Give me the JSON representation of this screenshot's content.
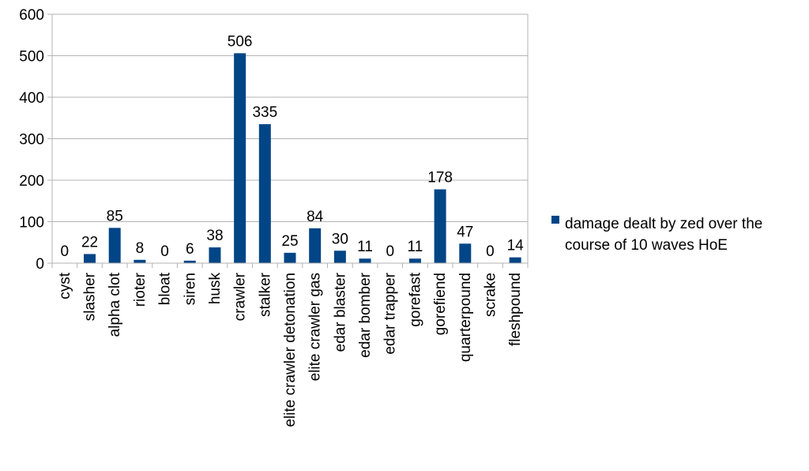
{
  "chart_data": {
    "type": "bar",
    "categories": [
      "cyst",
      "slasher",
      "alpha clot",
      "rioter",
      "bloat",
      "siren",
      "husk",
      "crawler",
      "stalker",
      "elite crawler detonation",
      "elite crawler gas",
      "edar blaster",
      "edar bomber",
      "edar trapper",
      "gorefast",
      "gorefiend",
      "quarterpound",
      "scrake",
      "fleshpound"
    ],
    "series": [
      {
        "name": "damage dealt by zed over the course of 10 waves HoE",
        "values": [
          0,
          22,
          85,
          8,
          0,
          6,
          38,
          506,
          335,
          25,
          84,
          30,
          11,
          0,
          11,
          178,
          47,
          0,
          14
        ],
        "color": "#004586"
      }
    ],
    "yticks": [
      "0",
      "100",
      "200",
      "300",
      "400",
      "500",
      "600"
    ],
    "ylim": [
      0,
      600
    ],
    "grid": true,
    "legend": {
      "position": "right",
      "lines": [
        "damage dealt by zed over the",
        "course of 10 waves HoE"
      ]
    }
  }
}
